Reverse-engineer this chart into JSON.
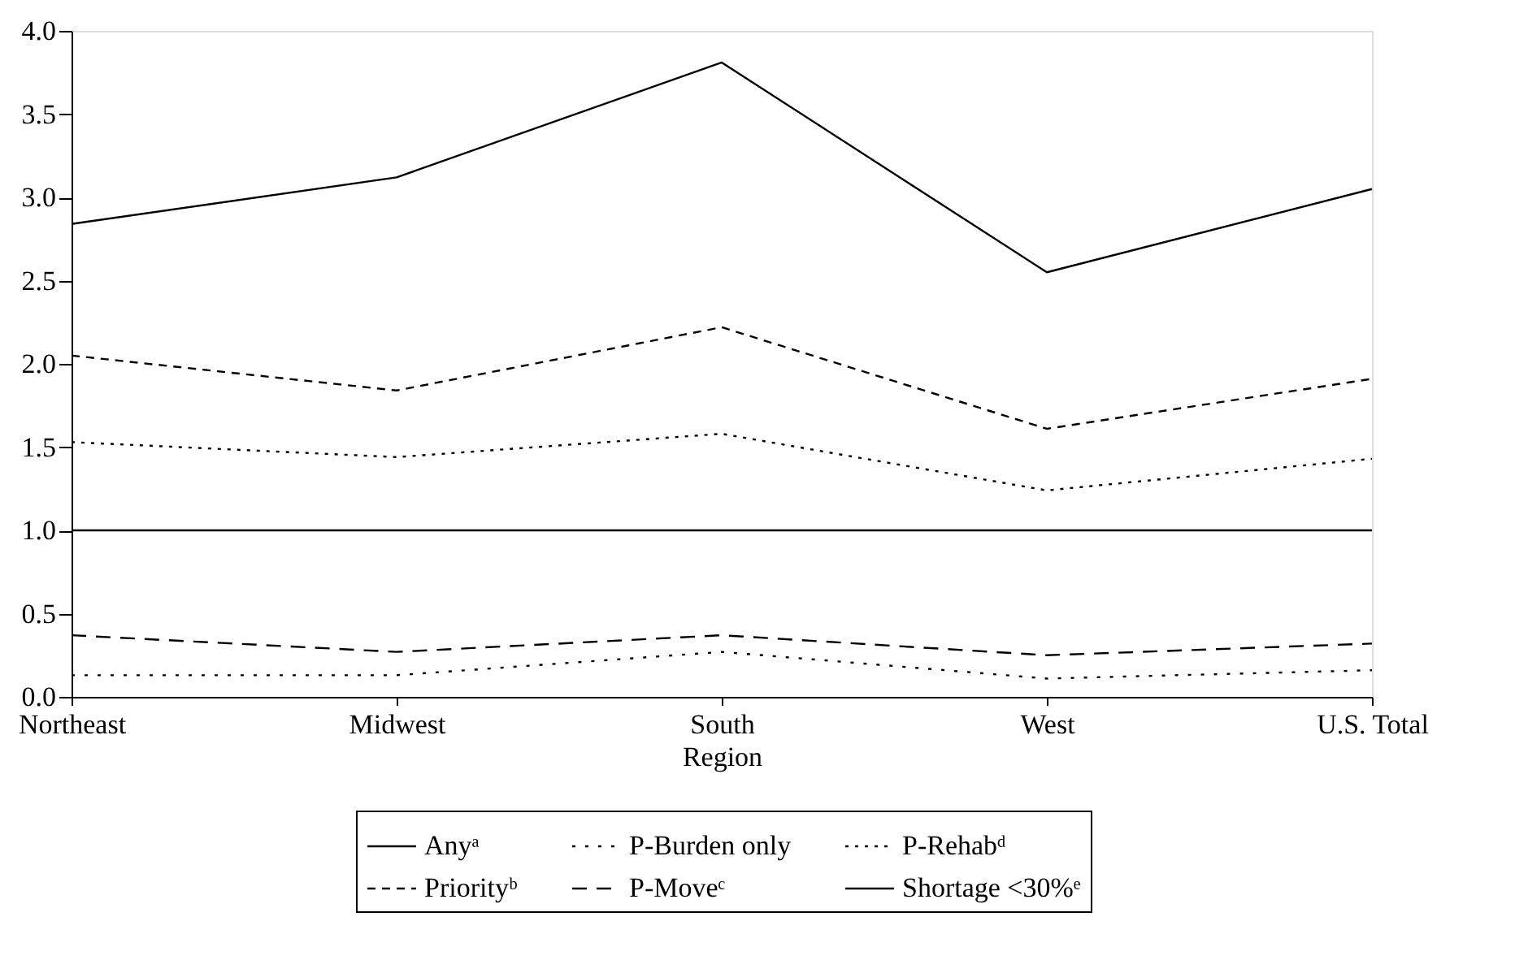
{
  "chart_data": {
    "type": "line",
    "xlabel": "Region",
    "categories": [
      "Northeast",
      "Midwest",
      "South",
      "West",
      "U.S. Total"
    ],
    "series": [
      {
        "name": "Anyᵃ",
        "color": "#000000",
        "line_style": "solid",
        "values": [
          2.84,
          3.12,
          3.81,
          2.55,
          3.05
        ]
      },
      {
        "name": "Priorityᵇ",
        "color": "#000000",
        "line_style": "dashed",
        "values": [
          2.05,
          1.84,
          2.22,
          1.61,
          1.91
        ]
      },
      {
        "name": "P-Burden only",
        "color": "#000000",
        "line_style": "dotted",
        "values": [
          0.13,
          0.13,
          0.27,
          0.11,
          0.16
        ]
      },
      {
        "name": "P-Moveᶜ",
        "color": "#000000",
        "line_style": "dashed",
        "values": [
          0.37,
          0.27,
          0.37,
          0.25,
          0.32
        ]
      },
      {
        "name": "P-Rehabᵈ",
        "color": "#000000",
        "line_style": "dotted",
        "values": [
          1.53,
          1.44,
          1.58,
          1.24,
          1.43
        ]
      },
      {
        "name": "Shortage <30%ᵉ",
        "color": "#000000",
        "line_style": "solid",
        "values": [
          1.0,
          1.0,
          1.0,
          1.0,
          1.0
        ]
      }
    ],
    "ylim": [
      0,
      4
    ],
    "yticks": [
      {
        "value": 0,
        "label": "0.0"
      },
      {
        "value": 0.5,
        "label": "0.5"
      },
      {
        "value": 1,
        "label": "1.0"
      },
      {
        "value": 1.5,
        "label": "1.5"
      },
      {
        "value": 2,
        "label": "2.0"
      },
      {
        "value": 2.5,
        "label": "2.5"
      },
      {
        "value": 3,
        "label": "3.0"
      },
      {
        "value": 3.5,
        "label": "3.5"
      },
      {
        "value": 4,
        "label": "4.0"
      }
    ],
    "grid": false,
    "legend": "bottom",
    "marker": "none"
  }
}
